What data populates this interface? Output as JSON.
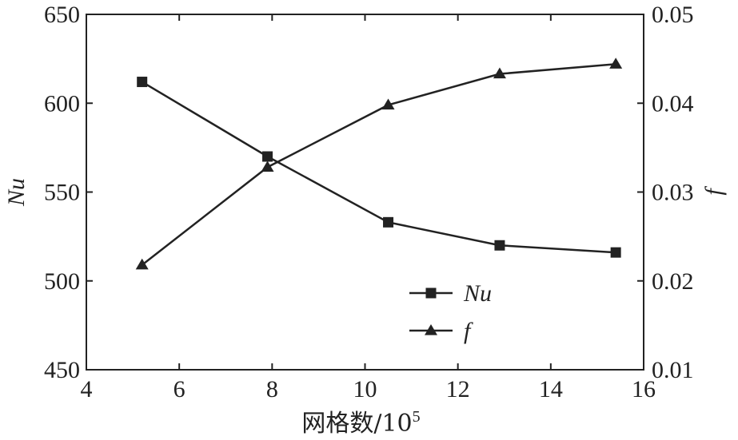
{
  "chart_data": {
    "type": "line",
    "title": "",
    "xlabel": "网格数/10",
    "xlabel_superscript": "5",
    "ylabel_left": "Nu",
    "ylabel_right": "f",
    "x_range": [
      4,
      16
    ],
    "x_ticks": [
      "4",
      "6",
      "8",
      "10",
      "12",
      "14",
      "16"
    ],
    "y_left_range": [
      450,
      650
    ],
    "y_left_ticks": [
      "450",
      "500",
      "550",
      "600",
      "650"
    ],
    "y_right_range": [
      0.01,
      0.05
    ],
    "y_right_ticks": [
      "0.01",
      "0.02",
      "0.03",
      "0.04",
      "0.05"
    ],
    "grid": false,
    "legend_position": "bottom-center",
    "x": [
      5.2,
      7.9,
      10.5,
      12.9,
      15.4
    ],
    "series": [
      {
        "name": "Nu",
        "axis": "left",
        "marker": "square",
        "values": [
          612,
          570,
          533,
          520,
          516
        ]
      },
      {
        "name": "f",
        "axis": "right",
        "marker": "triangle",
        "values": [
          0.0218,
          0.0328,
          0.0398,
          0.0433,
          0.0444
        ]
      }
    ]
  }
}
